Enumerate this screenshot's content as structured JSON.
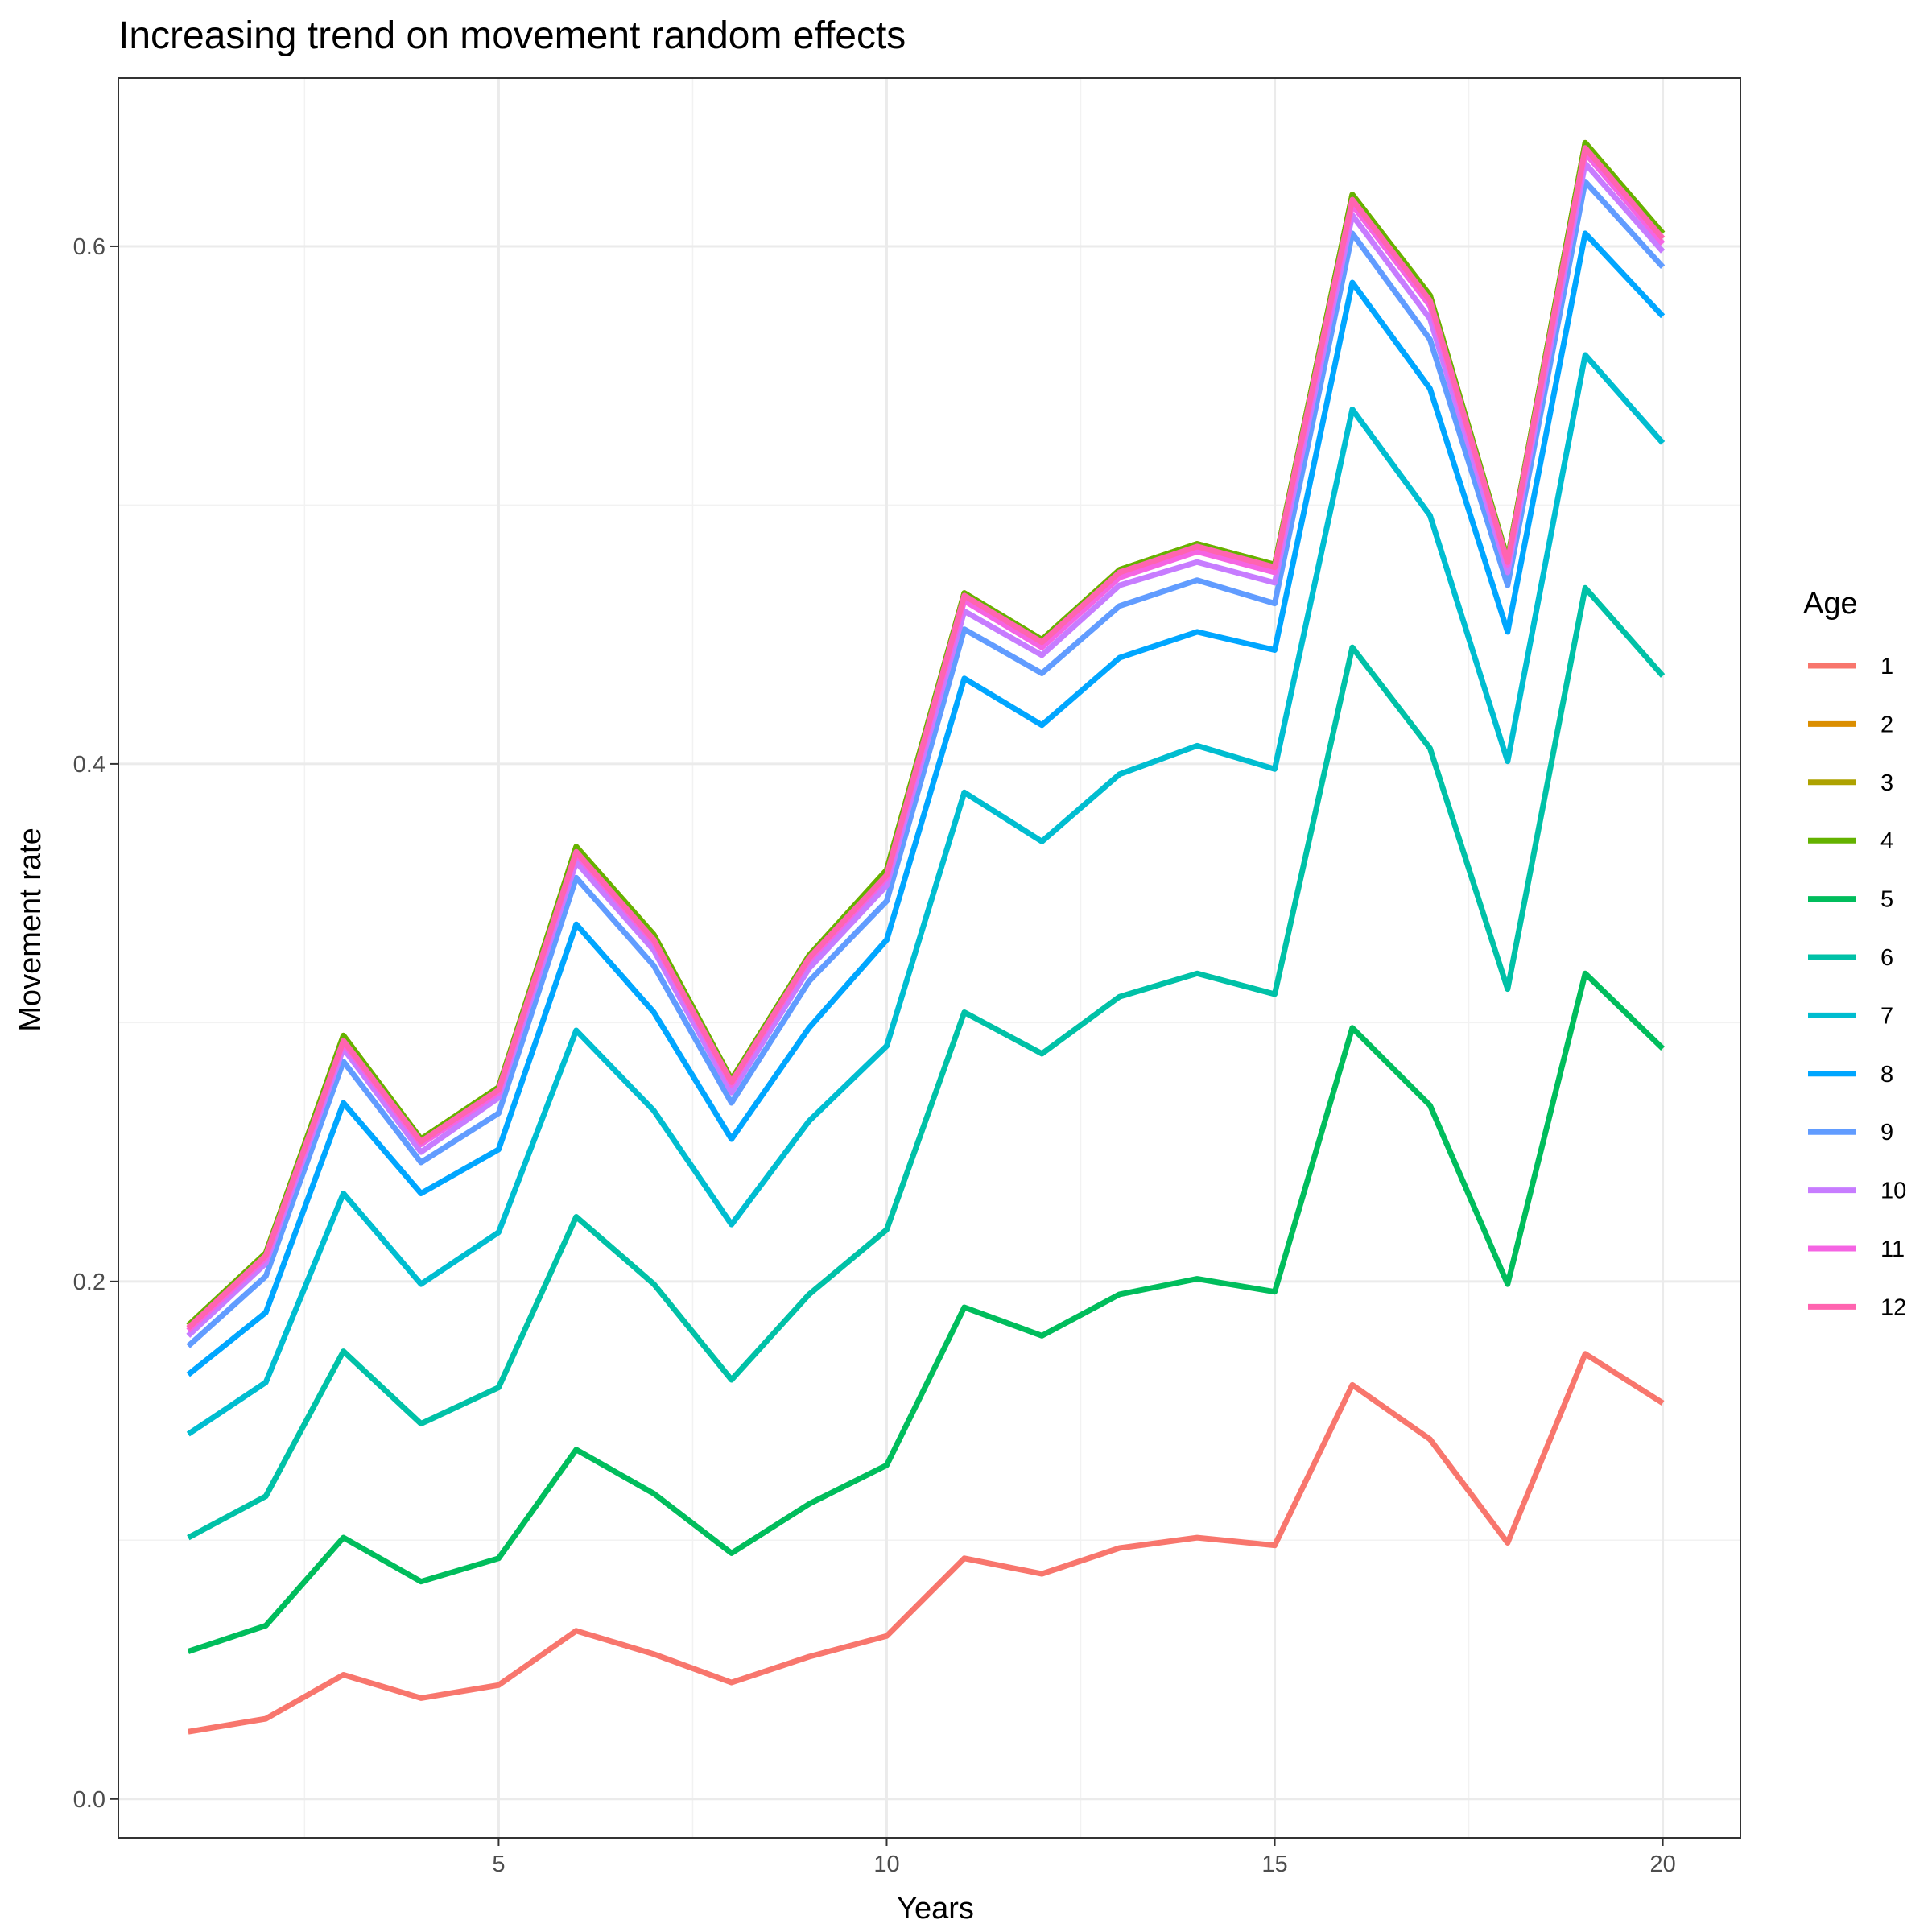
{
  "chart_data": {
    "type": "line",
    "title": "Increasing trend on movement random effects",
    "xlabel": "Years",
    "ylabel": "Movement rate",
    "xlim": [
      0.1,
      21.0
    ],
    "ylim": [
      -0.015,
      0.665
    ],
    "x_ticks": [
      5,
      10,
      15,
      20
    ],
    "x_tick_labels": [
      "5",
      "10",
      "15",
      "20"
    ],
    "y_ticks": [
      0.0,
      0.2,
      0.4,
      0.6
    ],
    "y_tick_labels": [
      "0.0",
      "0.2",
      "0.4",
      "0.6"
    ],
    "grid": true,
    "legend": {
      "title": "Age",
      "placement": "right"
    },
    "x": [
      1,
      2,
      3,
      4,
      5,
      6,
      7,
      8,
      9,
      10,
      11,
      12,
      13,
      14,
      15,
      16,
      17,
      18,
      19,
      20
    ],
    "series": [
      {
        "name": "1",
        "color": "#F8766D",
        "values": [
          0.026,
          0.031,
          0.048,
          0.039,
          0.044,
          0.065,
          0.056,
          0.045,
          0.055,
          0.063,
          0.093,
          0.087,
          0.097,
          0.101,
          0.098,
          0.16,
          0.139,
          0.099,
          0.172,
          0.153
        ]
      },
      {
        "name": "2",
        "color": "#DB8E00",
        "values": [
          0.183,
          0.211,
          0.295,
          0.255,
          0.275,
          0.368,
          0.334,
          0.278,
          0.326,
          0.359,
          0.466,
          0.448,
          0.475,
          0.485,
          0.477,
          0.62,
          0.581,
          0.479,
          0.64,
          0.605
        ]
      },
      {
        "name": "3",
        "color": "#AEA200",
        "values": [
          0.183,
          0.211,
          0.295,
          0.255,
          0.275,
          0.368,
          0.334,
          0.278,
          0.326,
          0.359,
          0.466,
          0.448,
          0.475,
          0.485,
          0.477,
          0.62,
          0.581,
          0.479,
          0.64,
          0.605
        ]
      },
      {
        "name": "4",
        "color": "#64B200",
        "values": [
          0.183,
          0.211,
          0.295,
          0.255,
          0.275,
          0.368,
          0.334,
          0.278,
          0.326,
          0.359,
          0.466,
          0.448,
          0.475,
          0.485,
          0.477,
          0.62,
          0.581,
          0.479,
          0.64,
          0.605
        ]
      },
      {
        "name": "5",
        "color": "#00BD5C",
        "values": [
          0.057,
          0.067,
          0.101,
          0.084,
          0.093,
          0.135,
          0.118,
          0.095,
          0.114,
          0.129,
          0.19,
          0.179,
          0.195,
          0.201,
          0.196,
          0.298,
          0.268,
          0.199,
          0.319,
          0.29
        ]
      },
      {
        "name": "6",
        "color": "#00C1A7",
        "values": [
          0.101,
          0.117,
          0.173,
          0.145,
          0.159,
          0.225,
          0.199,
          0.162,
          0.195,
          0.22,
          0.304,
          0.288,
          0.31,
          0.319,
          0.311,
          0.445,
          0.406,
          0.313,
          0.468,
          0.434
        ]
      },
      {
        "name": "7",
        "color": "#00BDD0",
        "values": [
          0.141,
          0.161,
          0.234,
          0.199,
          0.219,
          0.297,
          0.266,
          0.222,
          0.262,
          0.291,
          0.389,
          0.37,
          0.396,
          0.407,
          0.398,
          0.537,
          0.496,
          0.401,
          0.558,
          0.524
        ]
      },
      {
        "name": "8",
        "color": "#00A6FF",
        "values": [
          0.164,
          0.188,
          0.269,
          0.234,
          0.251,
          0.338,
          0.304,
          0.255,
          0.298,
          0.332,
          0.433,
          0.415,
          0.441,
          0.451,
          0.444,
          0.586,
          0.545,
          0.451,
          0.605,
          0.573
        ]
      },
      {
        "name": "9",
        "color": "#619CFF",
        "values": [
          0.175,
          0.202,
          0.285,
          0.246,
          0.265,
          0.356,
          0.322,
          0.269,
          0.316,
          0.347,
          0.452,
          0.435,
          0.461,
          0.471,
          0.462,
          0.605,
          0.564,
          0.469,
          0.625,
          0.592
        ]
      },
      {
        "name": "10",
        "color": "#C77CFF",
        "values": [
          0.179,
          0.207,
          0.29,
          0.25,
          0.271,
          0.362,
          0.328,
          0.273,
          0.321,
          0.353,
          0.459,
          0.442,
          0.469,
          0.478,
          0.47,
          0.612,
          0.572,
          0.474,
          0.632,
          0.598
        ]
      },
      {
        "name": "11",
        "color": "#F564E3",
        "values": [
          0.181,
          0.209,
          0.292,
          0.253,
          0.273,
          0.365,
          0.331,
          0.276,
          0.324,
          0.356,
          0.463,
          0.445,
          0.472,
          0.482,
          0.474,
          0.616,
          0.577,
          0.477,
          0.636,
          0.601
        ]
      },
      {
        "name": "12",
        "color": "#FF64B0",
        "values": [
          0.182,
          0.21,
          0.293,
          0.254,
          0.274,
          0.366,
          0.332,
          0.277,
          0.325,
          0.357,
          0.465,
          0.447,
          0.474,
          0.484,
          0.476,
          0.618,
          0.579,
          0.478,
          0.638,
          0.603
        ]
      }
    ]
  }
}
